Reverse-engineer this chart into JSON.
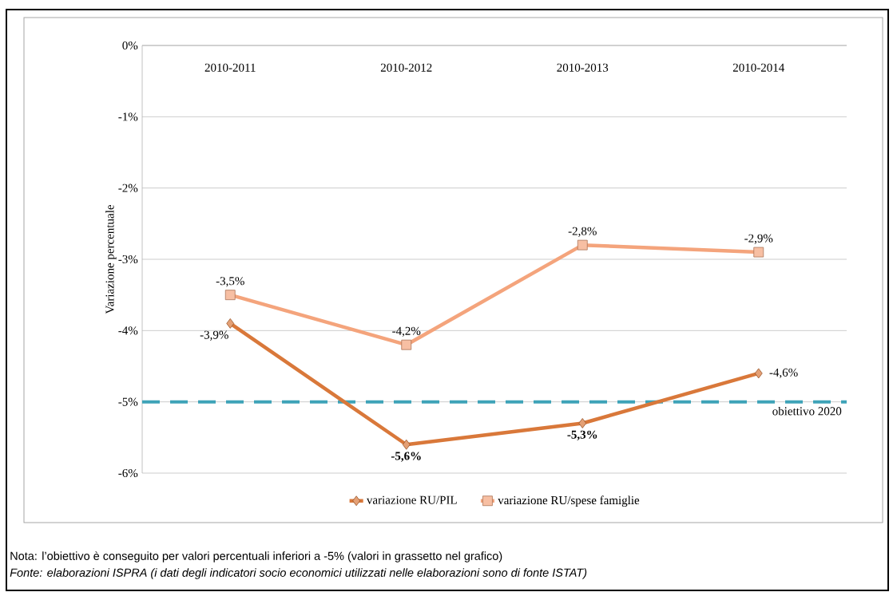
{
  "chart_data": {
    "type": "line",
    "ylabel": "Variazione percentuale",
    "categories": [
      "2010-2011",
      "2010-2012",
      "2010-2013",
      "2010-2014"
    ],
    "series": [
      {
        "name": "variazione RU/PIL",
        "color": "#d9783a",
        "marker": "diamond",
        "values": [
          -3.9,
          -5.6,
          -5.3,
          -4.6
        ],
        "value_labels": [
          "-3,9%",
          "-5,6%",
          "-5,3%",
          "-4,6%"
        ]
      },
      {
        "name": "variazione RU/spese famiglie",
        "color": "#f4a47c",
        "marker": "square",
        "values": [
          -3.5,
          -4.2,
          -2.8,
          -2.9
        ],
        "value_labels": [
          "-3,5%",
          "-4,2%",
          "-2,8%",
          "-2,9%"
        ]
      }
    ],
    "ylim": [
      -6,
      0
    ],
    "yticks": [
      {
        "value": 0,
        "label": "0%"
      },
      {
        "value": -1,
        "label": "-1%"
      },
      {
        "value": -2,
        "label": "-2%"
      },
      {
        "value": -3,
        "label": "-3%"
      },
      {
        "value": -4,
        "label": "-4%"
      },
      {
        "value": -5,
        "label": "-5%"
      },
      {
        "value": -6,
        "label": "-6%"
      }
    ],
    "grid": "y",
    "legend": "bottom",
    "line_style": "solid",
    "ref_lines": [
      {
        "axis": "y",
        "value": -5,
        "label": "obiettivo 2020",
        "color": "#3ea3b8",
        "line_style": "dashed"
      }
    ],
    "annotations": [
      "Nota: l’obiettivo è conseguito per valori percentuali inferiori a -5% (valori in grassetto nel grafico)",
      "Fonte: elaborazioni ISPRA (i dati degli indicatori socio economici utilizzati nelle elaborazioni sono di fonte ISTAT)"
    ]
  }
}
